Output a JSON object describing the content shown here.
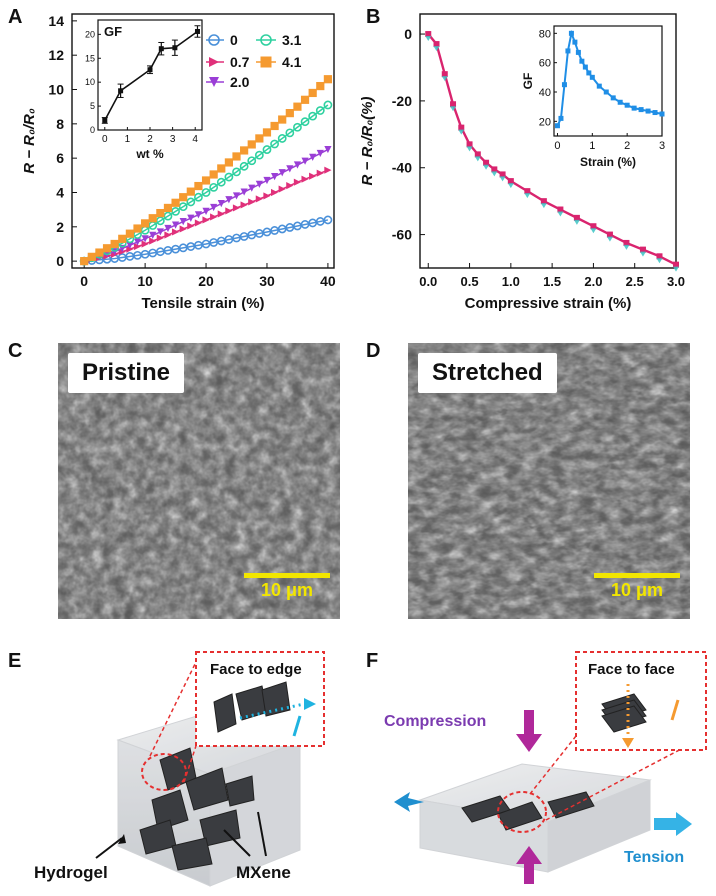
{
  "panels": {
    "A": {
      "letter": "A"
    },
    "B": {
      "letter": "B"
    },
    "C": {
      "letter": "C",
      "label": "Pristine",
      "scale": "10 μm"
    },
    "D": {
      "letter": "D",
      "label": "Stretched",
      "scale": "10 μm"
    },
    "E": {
      "letter": "E",
      "callout": "Face to edge",
      "label_hydrogel": "Hydrogel",
      "label_mxene": "MXene"
    },
    "F": {
      "letter": "F",
      "callout": "Face to face",
      "label_compression": "Compression",
      "label_tension": "Tension"
    }
  },
  "colors": {
    "s0": "#4a90d9",
    "s07": "#e0307a",
    "s20": "#9a3ed6",
    "s31": "#2fd1a0",
    "s41": "#f59a30",
    "inset": "#1f8ee6",
    "curveB": "#d9246e",
    "markerB": "#3cc4c4",
    "scalebar": "#f2e600",
    "callout": "#e53030"
  },
  "chart_data": [
    {
      "id": "A",
      "type": "line",
      "title": "",
      "xlabel": "Tensile strain (%)",
      "ylabel": "R − R₀/R₀",
      "xlim": [
        -2,
        41
      ],
      "ylim": [
        -0.4,
        14.4
      ],
      "xticks": [
        0,
        10,
        20,
        30,
        40
      ],
      "yticks": [
        0,
        2,
        4,
        6,
        8,
        10,
        12,
        14
      ],
      "legend_position": "top-right",
      "series": [
        {
          "name": "0",
          "color": "#4a90d9",
          "marker": "circle",
          "x": [
            0,
            5,
            10,
            15,
            20,
            25,
            30,
            35,
            40
          ],
          "y": [
            0,
            0.15,
            0.4,
            0.7,
            1.0,
            1.35,
            1.7,
            2.05,
            2.4
          ]
        },
        {
          "name": "0.7",
          "color": "#e0307a",
          "marker": "triangle-right",
          "x": [
            0,
            5,
            10,
            15,
            20,
            25,
            30,
            35,
            40
          ],
          "y": [
            0,
            0.4,
            1.0,
            1.7,
            2.4,
            3.1,
            3.8,
            4.6,
            5.3
          ]
        },
        {
          "name": "2.0",
          "color": "#9a3ed6",
          "marker": "triangle-down",
          "x": [
            0,
            5,
            10,
            15,
            20,
            25,
            30,
            35,
            40
          ],
          "y": [
            0,
            0.55,
            1.3,
            2.1,
            2.9,
            3.8,
            4.7,
            5.6,
            6.5
          ]
        },
        {
          "name": "3.1",
          "color": "#2fd1a0",
          "marker": "circle",
          "x": [
            0,
            5,
            10,
            15,
            20,
            25,
            30,
            35,
            40
          ],
          "y": [
            0,
            0.8,
            1.8,
            2.9,
            4.0,
            5.2,
            6.5,
            7.8,
            9.1
          ]
        },
        {
          "name": "4.1",
          "color": "#f59a30",
          "marker": "square",
          "x": [
            0,
            5,
            10,
            15,
            20,
            25,
            30,
            35,
            40
          ],
          "y": [
            0,
            1.0,
            2.2,
            3.4,
            4.7,
            6.1,
            7.5,
            9.0,
            10.6
          ]
        }
      ],
      "inset": {
        "type": "line",
        "title": "GF",
        "xlabel": "wt %",
        "ylabel": "",
        "xlim": [
          -0.3,
          4.3
        ],
        "ylim": [
          0,
          23
        ],
        "xticks": [
          0,
          1,
          2,
          3,
          4
        ],
        "yticks": [
          0,
          5,
          10,
          15,
          20
        ],
        "x": [
          0,
          0.7,
          2.0,
          2.5,
          3.1,
          4.1
        ],
        "y": [
          2.0,
          8.2,
          12.6,
          17.0,
          17.2,
          20.6
        ],
        "yerr": [
          0.6,
          1.4,
          0.8,
          1.3,
          1.6,
          1.2
        ]
      }
    },
    {
      "id": "B",
      "type": "line",
      "title": "",
      "xlabel": "Compressive strain (%)",
      "ylabel": "R − R₀/R₀(%)",
      "xlim": [
        -0.1,
        3.0
      ],
      "ylim": [
        -70,
        6
      ],
      "xticks": [
        0.0,
        0.5,
        1.0,
        1.5,
        2.0,
        2.5,
        3.0
      ],
      "yticks": [
        0,
        -20,
        -40,
        -60
      ],
      "series": [
        {
          "name": "",
          "color": "#d9246e",
          "x": [
            0,
            0.1,
            0.2,
            0.3,
            0.4,
            0.5,
            0.6,
            0.7,
            0.8,
            0.9,
            1.0,
            1.2,
            1.4,
            1.6,
            1.8,
            2.0,
            2.2,
            2.4,
            2.6,
            2.8,
            3.0
          ],
          "y": [
            0,
            -3,
            -12,
            -21,
            -28,
            -33,
            -36,
            -38.5,
            -40.5,
            -42,
            -44,
            -47,
            -50,
            -52.5,
            -55,
            -57.5,
            -60,
            -62.5,
            -64.5,
            -66.5,
            -69
          ]
        }
      ],
      "inset": {
        "type": "line",
        "xlabel": "Strain (%)",
        "ylabel": "GF",
        "xlim": [
          -0.1,
          3.0
        ],
        "ylim": [
          10,
          85
        ],
        "xticks": [
          0,
          1,
          2,
          3
        ],
        "yticks": [
          20,
          40,
          60,
          80
        ],
        "x": [
          0.0,
          0.1,
          0.2,
          0.3,
          0.4,
          0.5,
          0.6,
          0.7,
          0.8,
          0.9,
          1.0,
          1.2,
          1.4,
          1.6,
          1.8,
          2.0,
          2.2,
          2.4,
          2.6,
          2.8,
          3.0
        ],
        "y": [
          17,
          22,
          45,
          68,
          80,
          74,
          67,
          61,
          57,
          53,
          50,
          44,
          40,
          36,
          33,
          31,
          29,
          28,
          27,
          26,
          25
        ]
      }
    }
  ]
}
